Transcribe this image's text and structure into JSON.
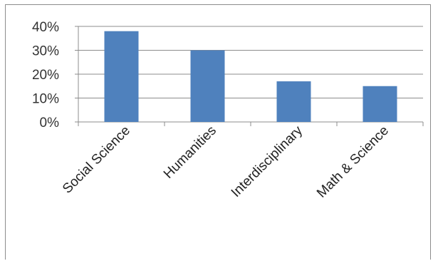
{
  "chart_data": {
    "type": "bar",
    "categories": [
      "Social Science",
      "Humanities",
      "Interdisciplinary",
      "Math & Science"
    ],
    "values": [
      38,
      30,
      17,
      15
    ],
    "ylim": [
      0,
      40
    ],
    "yticks": [
      "0%",
      "10%",
      "20%",
      "30%",
      "40%"
    ],
    "grid": true,
    "title": "",
    "xlabel": "",
    "ylabel": "",
    "bar_color": "#4f81bd"
  }
}
